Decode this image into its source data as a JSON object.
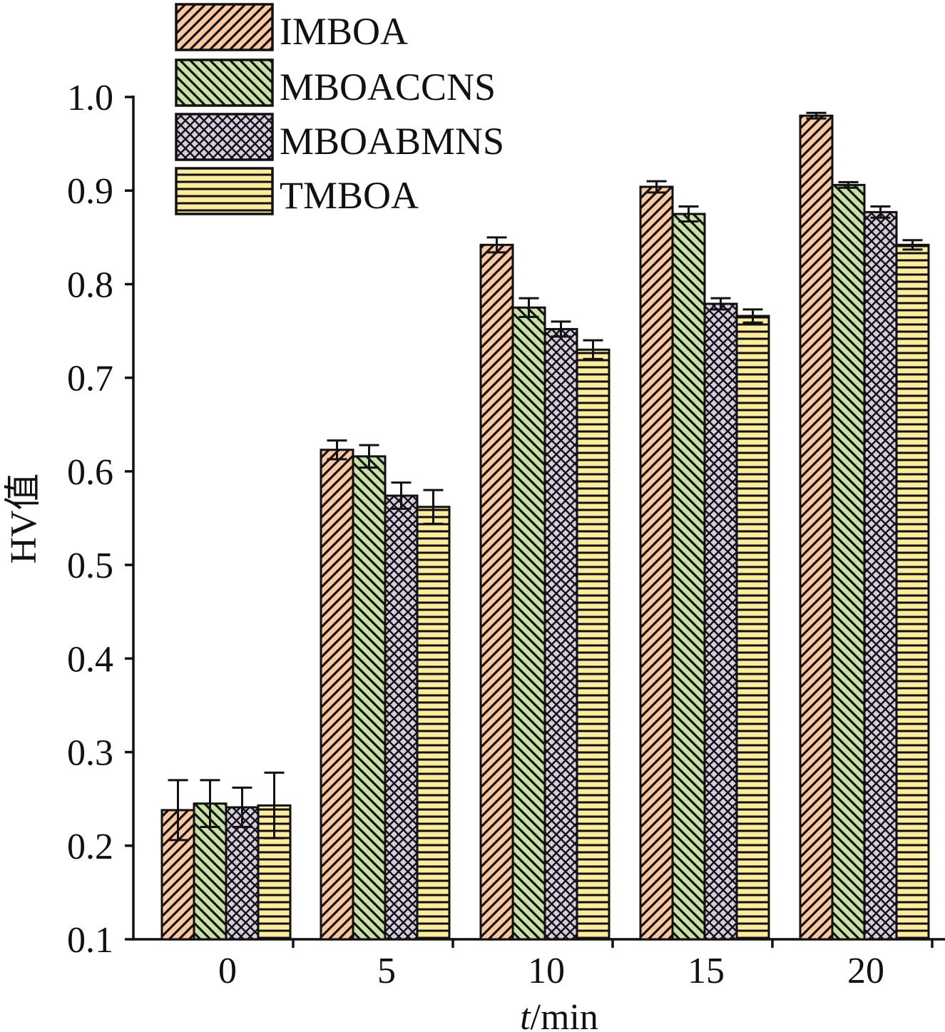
{
  "chart_data": {
    "type": "bar",
    "xlabel_italic": "t",
    "xlabel_rest": "/min",
    "ylabel": "HV值",
    "ylim": [
      0.1,
      1.0
    ],
    "yticks": [
      "0.1",
      "0.2",
      "0.3",
      "0.4",
      "0.5",
      "0.6",
      "0.7",
      "0.8",
      "0.9",
      "1.0"
    ],
    "categories": [
      "0",
      "5",
      "10",
      "15",
      "20"
    ],
    "legend_position": "top-left",
    "series": [
      {
        "name": "IMBOA",
        "color": "#FDC89F",
        "pattern": "diagonal-up",
        "values": [
          0.238,
          0.623,
          0.842,
          0.904,
          0.98
        ],
        "errors": [
          0.032,
          0.01,
          0.008,
          0.006,
          0.003
        ]
      },
      {
        "name": "MBOACCNS",
        "color": "#C8E2A6",
        "pattern": "diagonal-down",
        "values": [
          0.245,
          0.616,
          0.775,
          0.875,
          0.906
        ],
        "errors": [
          0.025,
          0.012,
          0.01,
          0.008,
          0.003
        ]
      },
      {
        "name": "MBOABMNS",
        "color": "#D7CBDF",
        "pattern": "crosshatch",
        "values": [
          0.241,
          0.574,
          0.752,
          0.779,
          0.877
        ],
        "errors": [
          0.021,
          0.014,
          0.008,
          0.006,
          0.006
        ]
      },
      {
        "name": "TMBOA",
        "color": "#FCEC9C",
        "pattern": "horizontal",
        "values": [
          0.243,
          0.562,
          0.73,
          0.766,
          0.842
        ],
        "errors": [
          0.035,
          0.018,
          0.01,
          0.007,
          0.005
        ]
      }
    ]
  }
}
